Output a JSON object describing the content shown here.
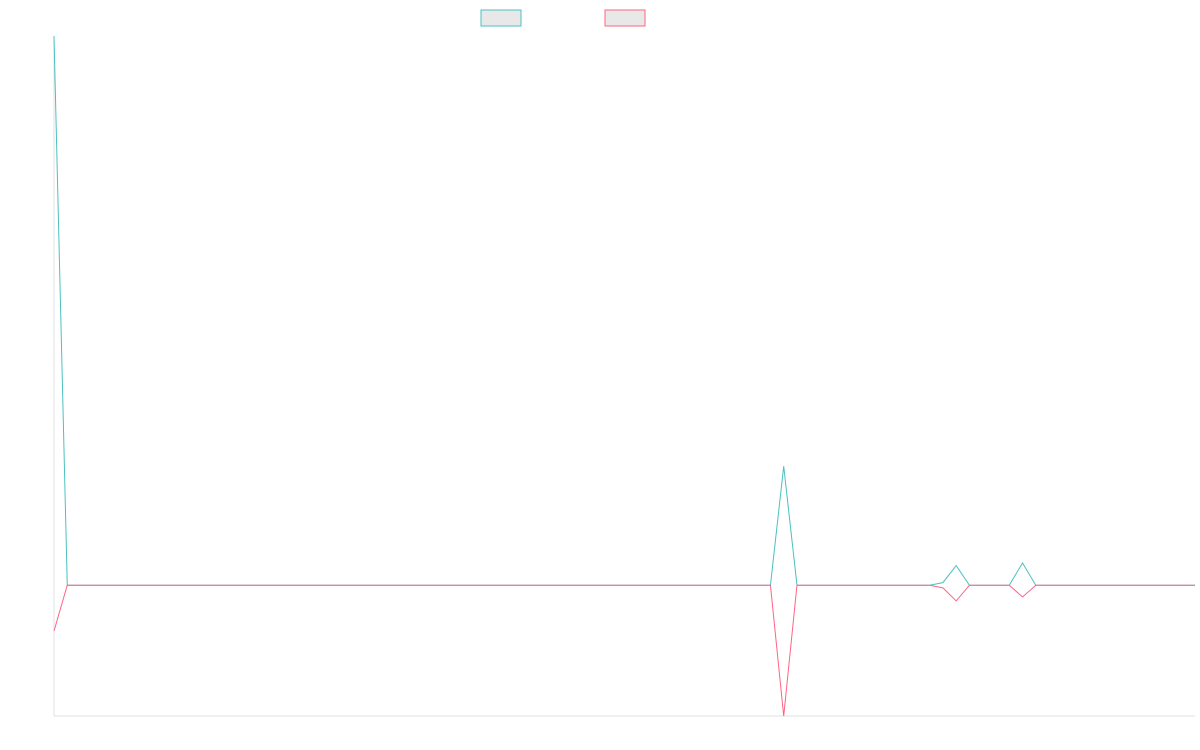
{
  "chart_data": {
    "type": "line",
    "title": "",
    "xlabel": "",
    "ylabel": "",
    "x_tick_labels": [],
    "y_tick_labels": [],
    "grid": false,
    "legend_position": "top",
    "x": [
      0,
      1,
      2,
      3,
      4,
      5,
      6,
      7,
      8,
      9,
      10,
      11,
      12,
      13,
      14,
      15,
      16,
      17,
      18,
      19,
      20,
      21,
      22,
      23,
      24,
      25,
      26,
      27,
      28,
      29,
      30,
      31,
      32,
      33,
      34,
      35,
      36,
      37,
      38,
      39,
      40,
      41,
      42,
      43,
      44,
      45,
      46,
      47,
      48,
      49,
      50,
      51,
      52,
      53,
      54,
      55,
      56,
      57,
      58,
      59,
      60,
      61,
      62,
      63,
      64,
      65,
      66,
      67,
      68,
      69,
      70,
      71,
      72,
      73,
      74,
      75,
      76,
      77,
      78,
      79,
      80,
      81,
      82,
      83,
      84,
      85,
      86
    ],
    "ylim": [
      -10,
      42
    ],
    "series": [
      {
        "name": "",
        "color": "#4bc0c0",
        "values": [
          42,
          0,
          0,
          0,
          0,
          0,
          0,
          0,
          0,
          0,
          0,
          0,
          0,
          0,
          0,
          0,
          0,
          0,
          0,
          0,
          0,
          0,
          0,
          0,
          0,
          0,
          0,
          0,
          0,
          0,
          0,
          0,
          0,
          0,
          0,
          0,
          0,
          0,
          0,
          0,
          0,
          0,
          0,
          0,
          0,
          0,
          0,
          0,
          0,
          0,
          0,
          0,
          0,
          0,
          0,
          9.1,
          0,
          0,
          0,
          0,
          0,
          0,
          0,
          0,
          0,
          0,
          0,
          0.2,
          1.5,
          0,
          0,
          0,
          0,
          1.7,
          0,
          0,
          0,
          0,
          0,
          0,
          0,
          0,
          0,
          0,
          0,
          0,
          0
        ]
      },
      {
        "name": "",
        "color": "#ff6384",
        "values": [
          -3.5,
          0,
          0,
          0,
          0,
          0,
          0,
          0,
          0,
          0,
          0,
          0,
          0,
          0,
          0,
          0,
          0,
          0,
          0,
          0,
          0,
          0,
          0,
          0,
          0,
          0,
          0,
          0,
          0,
          0,
          0,
          0,
          0,
          0,
          0,
          0,
          0,
          0,
          0,
          0,
          0,
          0,
          0,
          0,
          0,
          0,
          0,
          0,
          0,
          0,
          0,
          0,
          0,
          0,
          0,
          -10,
          0,
          0,
          0,
          0,
          0,
          0,
          0,
          0,
          0,
          0,
          0,
          -0.2,
          -1.2,
          0,
          0,
          0,
          0,
          -0.9,
          0,
          0,
          0,
          0,
          0,
          0,
          0,
          0,
          0,
          0,
          0,
          0,
          0
        ]
      }
    ]
  }
}
